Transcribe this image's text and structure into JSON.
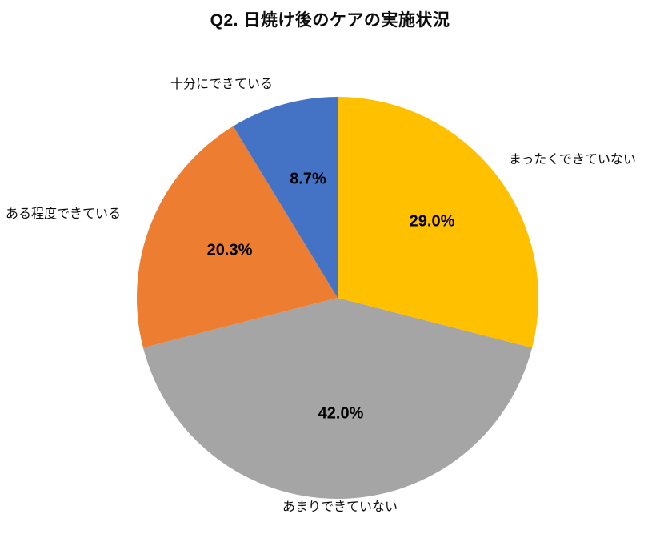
{
  "page_title": "Q2. 日焼け後のケアの実施状況",
  "chart_data": {
    "type": "pie",
    "title": "Q2. 日焼け後のケアの実施状況",
    "start_angle_deg": 0,
    "direction": "clockwise",
    "legend": "none",
    "label_placement": "outside",
    "value_label_placement": "inside",
    "background_color": "#ffffff",
    "slices": [
      {
        "label": "まったくできていない",
        "value": 29.0,
        "value_label": "29.0%",
        "color": "#FFC000"
      },
      {
        "label": "あまりできていない",
        "value": 42.0,
        "value_label": "42.0%",
        "color": "#A5A5A5"
      },
      {
        "label": "ある程度できている",
        "value": 20.3,
        "value_label": "20.3%",
        "color": "#ED7D31"
      },
      {
        "label": "十分にできている",
        "value": 8.7,
        "value_label": "8.7%",
        "color": "#4472C4"
      }
    ]
  }
}
